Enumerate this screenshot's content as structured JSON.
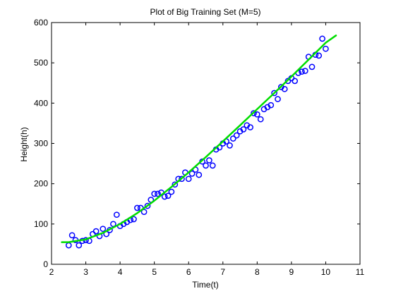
{
  "chart_data": {
    "type": "scatter",
    "title": "Plot of Big Training Set (M=5)",
    "xlabel": "Time(t)",
    "ylabel": "Height(h)",
    "xlim": [
      2,
      11
    ],
    "ylim": [
      0,
      600
    ],
    "xticks": [
      "2",
      "3",
      "4",
      "5",
      "6",
      "7",
      "8",
      "9",
      "10",
      "11"
    ],
    "yticks": [
      "0",
      "100",
      "200",
      "300",
      "400",
      "500",
      "600"
    ],
    "grid": false,
    "legend": "none",
    "series": [
      {
        "type": "scatter",
        "marker": "circle-open",
        "color": "#0000ff",
        "x": [
          2.5,
          2.6,
          2.7,
          2.8,
          2.9,
          3.0,
          3.1,
          3.2,
          3.3,
          3.4,
          3.5,
          3.6,
          3.7,
          3.8,
          3.9,
          4.0,
          4.1,
          4.2,
          4.3,
          4.4,
          4.5,
          4.6,
          4.7,
          4.8,
          4.9,
          5.0,
          5.1,
          5.2,
          5.3,
          5.4,
          5.5,
          5.6,
          5.7,
          5.8,
          5.9,
          6.0,
          6.1,
          6.2,
          6.3,
          6.4,
          6.5,
          6.6,
          6.7,
          6.8,
          6.9,
          7.0,
          7.1,
          7.2,
          7.3,
          7.4,
          7.5,
          7.6,
          7.7,
          7.8,
          7.9,
          8.0,
          8.1,
          8.2,
          8.3,
          8.4,
          8.5,
          8.6,
          8.7,
          8.8,
          8.9,
          9.0,
          9.1,
          9.2,
          9.3,
          9.4,
          9.5,
          9.6,
          9.7,
          9.8,
          9.9,
          10.0
        ],
        "y": [
          47,
          72,
          60,
          47,
          58,
          60,
          58,
          75,
          82,
          70,
          88,
          75,
          85,
          100,
          123,
          95,
          100,
          105,
          110,
          112,
          140,
          140,
          130,
          145,
          160,
          175,
          175,
          178,
          168,
          170,
          180,
          198,
          212,
          212,
          228,
          212,
          225,
          235,
          222,
          255,
          245,
          258,
          245,
          285,
          290,
          300,
          305,
          295,
          312,
          320,
          330,
          335,
          345,
          340,
          375,
          372,
          360,
          385,
          390,
          395,
          425,
          410,
          440,
          435,
          455,
          462,
          455,
          475,
          478,
          480,
          515,
          490,
          520,
          518,
          560,
          535
        ]
      },
      {
        "type": "line",
        "color": "#00dd00",
        "x": [
          2.3,
          2.5,
          3.0,
          3.5,
          4.0,
          4.5,
          5.0,
          5.5,
          6.0,
          6.5,
          7.0,
          7.5,
          8.0,
          8.5,
          9.0,
          9.5,
          10.0,
          10.3
        ],
        "y": [
          55,
          55,
          62,
          78,
          100,
          127,
          158,
          192,
          228,
          266,
          305,
          345,
          385,
          425,
          466,
          508,
          550,
          568
        ]
      }
    ]
  }
}
